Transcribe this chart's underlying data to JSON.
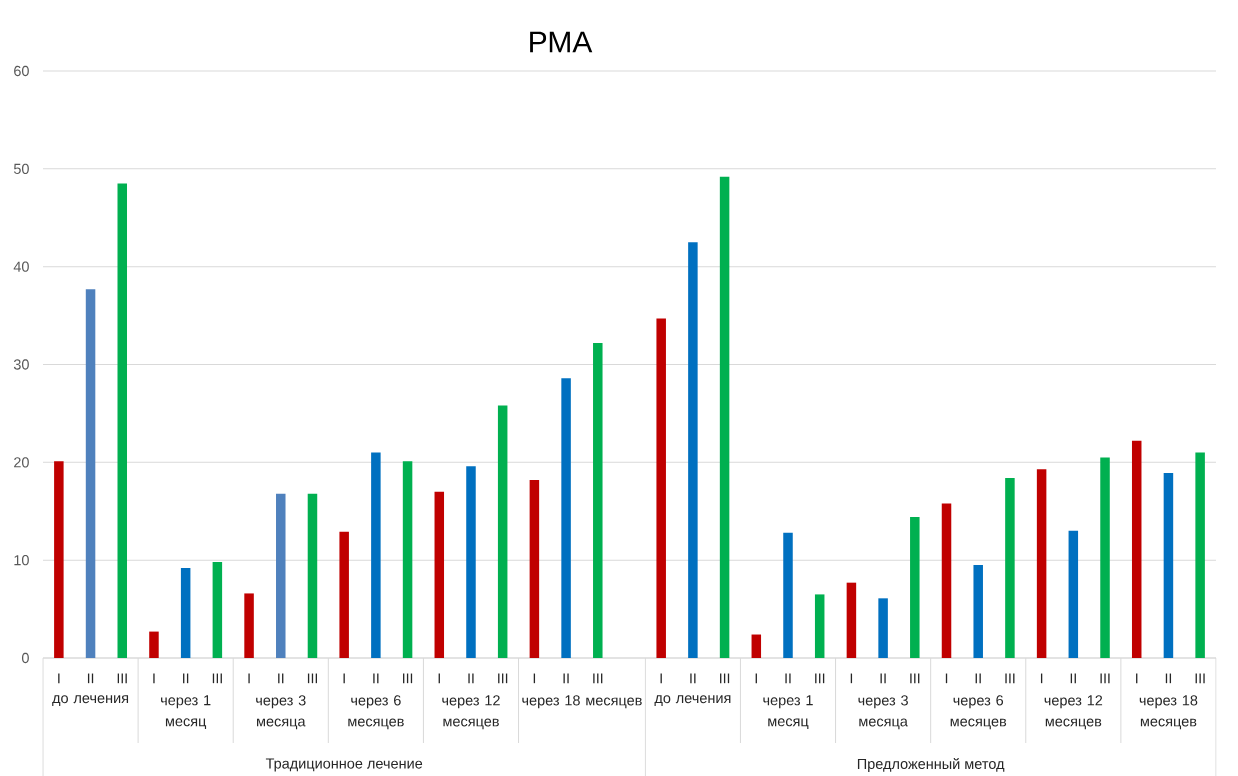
{
  "chart_data": {
    "type": "bar",
    "title": "РМА",
    "categories": [
      "I",
      "II",
      "III",
      "I",
      "II",
      "III",
      "I",
      "II",
      "III",
      "I",
      "II",
      "III",
      "I",
      "II",
      "III",
      "I",
      "II",
      "III",
      null,
      "I",
      "II",
      "III",
      "I",
      "II",
      "III",
      "I",
      "II",
      "III",
      "I",
      "II",
      "III",
      "I",
      "II",
      "III",
      "I",
      "II",
      "III"
    ],
    "values": [
      20.1,
      37.7,
      48.5,
      2.7,
      9.2,
      9.8,
      6.6,
      16.8,
      16.8,
      12.9,
      21.0,
      20.1,
      17.0,
      19.6,
      25.8,
      18.2,
      28.6,
      32.2,
      null,
      34.7,
      42.5,
      49.2,
      2.4,
      12.8,
      6.5,
      7.7,
      6.1,
      14.4,
      15.8,
      9.5,
      18.4,
      19.3,
      13.0,
      20.5,
      22.2,
      18.9,
      21.0
    ],
    "colors": [
      "#c00000",
      "#4f81bd",
      "#00b050",
      "#c00000",
      "#0070c0",
      "#00b050",
      "#c00000",
      "#4f81bd",
      "#00b050",
      "#c00000",
      "#0070c0",
      "#00b050",
      "#c00000",
      "#0070c0",
      "#00b050",
      "#c00000",
      "#0070c0",
      "#00b050",
      null,
      "#c00000",
      "#0070c0",
      "#00b050",
      "#c00000",
      "#0070c0",
      "#00b050",
      "#c00000",
      "#0070c0",
      "#00b050",
      "#c00000",
      "#0070c0",
      "#00b050",
      "#c00000",
      "#0070c0",
      "#00b050",
      "#c00000",
      "#0070c0",
      "#00b050"
    ],
    "ylim": [
      0,
      60
    ],
    "yticks": [
      0,
      10,
      20,
      30,
      40,
      50,
      60
    ],
    "grid": "y",
    "annotations": [
      "до лечения",
      "через 1 месяц",
      "через 3 месяца",
      "через 6 месяцев",
      "через 12 месяцев",
      "через 18 месяцев",
      "до лечения",
      "через 1 месяц",
      "через 3 месяца",
      "через 6 месяцев",
      "через 12 месяцев",
      "через 18 месяцев",
      "Традиционное лечение",
      "Предложенный метод"
    ]
  }
}
